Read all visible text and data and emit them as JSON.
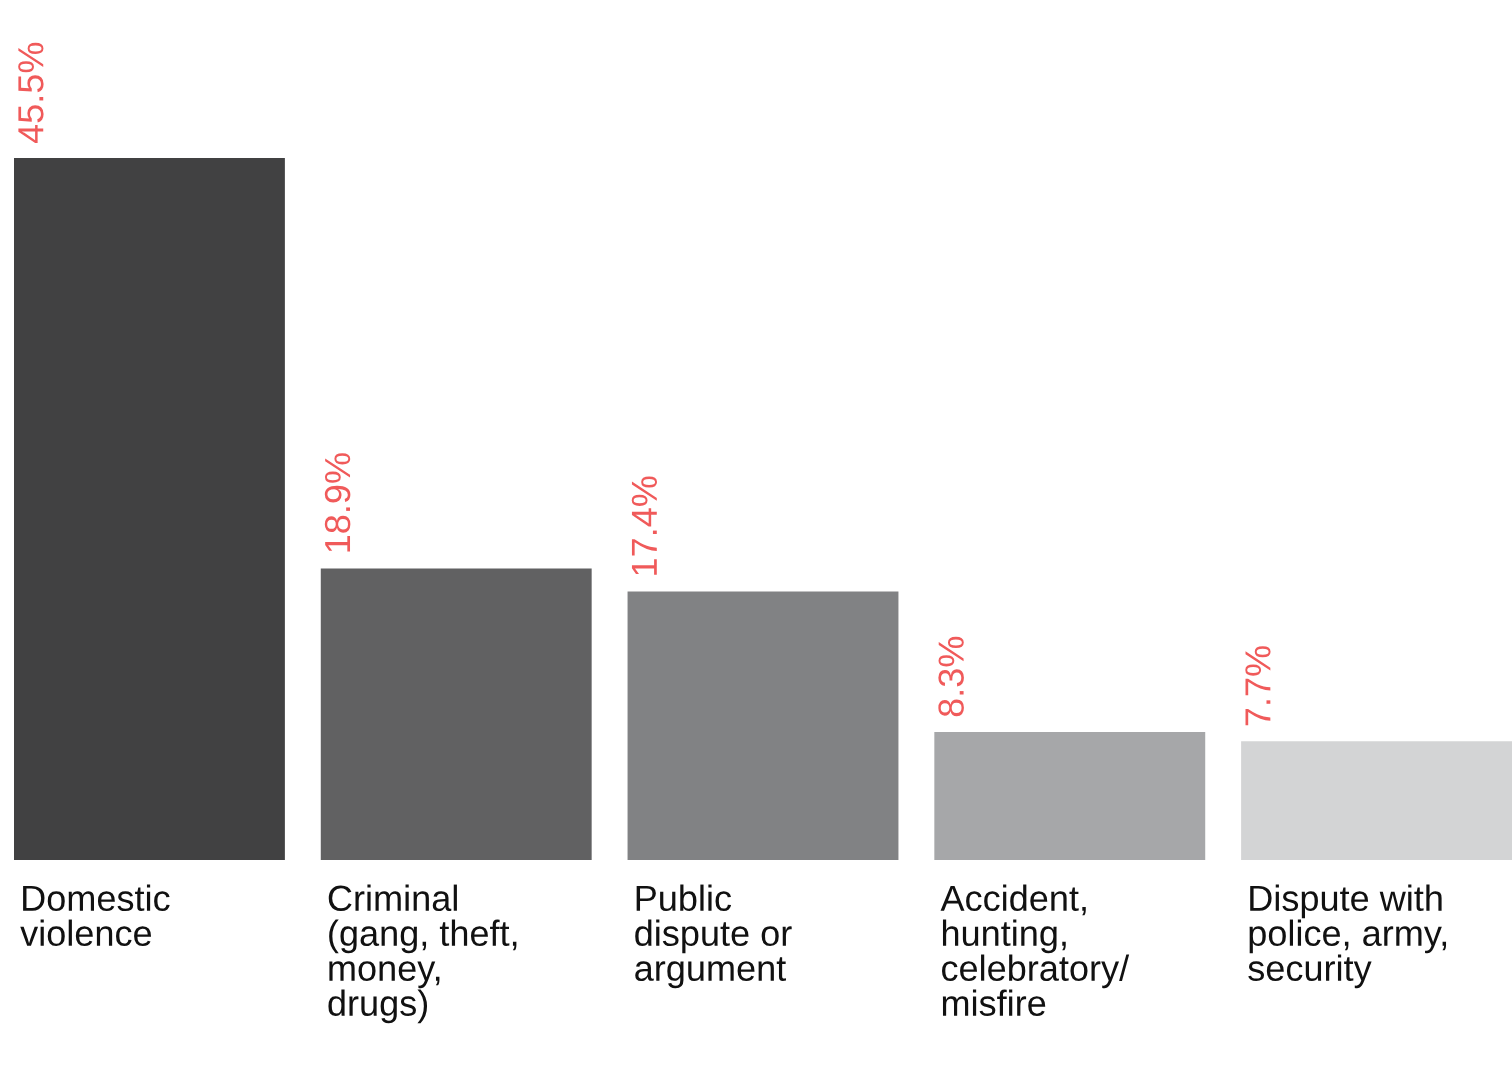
{
  "chart_data": {
    "type": "bar",
    "categories": [
      "Domestic\nviolence",
      "Criminal\n(gang, theft,\nmoney,\ndrugs)",
      "Public\ndispute or\nargument",
      "Accident,\nhunting,\ncelebratory/\nmisfire",
      "Dispute with\npolice, army,\nsecurity"
    ],
    "values": [
      45.5,
      18.9,
      17.4,
      8.3,
      7.7
    ],
    "colors": [
      "#414142",
      "#616162",
      "#818284",
      "#a6a7a9",
      "#d3d4d5"
    ],
    "value_labels": [
      "45.5%",
      "18.9%",
      "17.4%",
      "8.3%",
      "7.7%"
    ],
    "data_labels": true
  }
}
